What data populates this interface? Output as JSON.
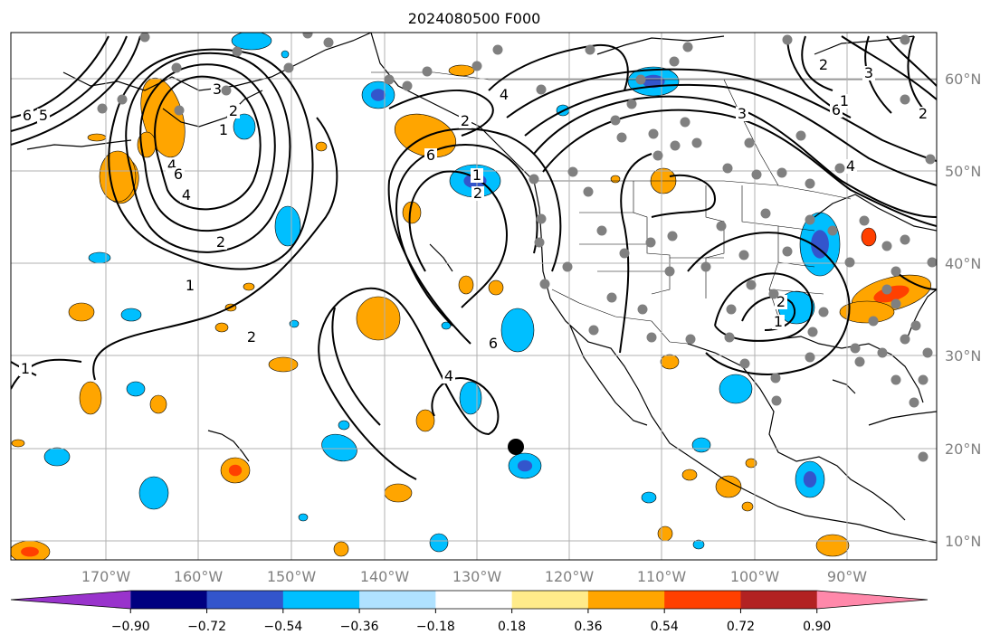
{
  "title": "2024080500 F000",
  "map": {
    "lon_range": [
      -180,
      -80
    ],
    "lat_range": [
      8,
      65
    ],
    "lat_labels": [
      "10°N",
      "20°N",
      "30°N",
      "40°N",
      "50°N",
      "60°N"
    ],
    "lon_labels": [
      "170°W",
      "160°W",
      "150°W",
      "140°W",
      "130°W",
      "120°W",
      "110°W",
      "100°W",
      "90°W"
    ],
    "contour_labels": [
      "6",
      "5",
      "4",
      "3",
      "2",
      "1",
      "6",
      "4",
      "2",
      "1",
      "2",
      "1",
      "4",
      "6",
      "1",
      "2",
      "6",
      "4",
      "2",
      "3",
      "6",
      "4",
      "2",
      "1",
      "2",
      "3",
      "1",
      "2"
    ],
    "colors": {
      "station_dot": "#808080",
      "marker": "#000000",
      "grid": "#b0b0b0",
      "coast": "#000000",
      "contour": "#000000"
    }
  },
  "colorbar": {
    "colors": [
      "#9933cc",
      "#000080",
      "#3355cc",
      "#00bfff",
      "#b0e2ff",
      "#ffffff",
      "#ffeb8a",
      "#ffa500",
      "#ff4000",
      "#b22222",
      "#ff88aa"
    ],
    "tick_labels": [
      "−0.90",
      "−0.72",
      "−0.54",
      "−0.36",
      "−0.18",
      "0.18",
      "0.36",
      "0.54",
      "0.72",
      "0.90"
    ]
  }
}
